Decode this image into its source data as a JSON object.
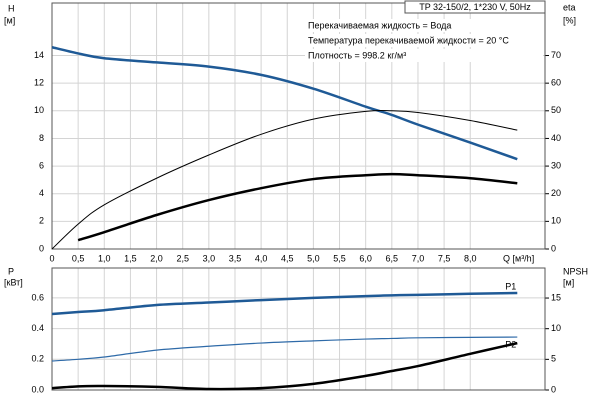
{
  "chart_data": [
    {
      "type": "line",
      "title": "TP 32-150/2, 1*230 V, 50Hz",
      "annotations": [
        "Перекачиваемая жидкость = Вода",
        "Температура перекачиваемой жидкости = 20 °C",
        "Плотность = 998.2 кг/м³"
      ],
      "ylabel": "H",
      "yunit": "[м]",
      "y2label": "eta",
      "y2unit": "[%]",
      "xlabel": "Q [м³/h]",
      "x": [
        0,
        0.5,
        1,
        2,
        3,
        4,
        5,
        6,
        6.5,
        7,
        8,
        8.9
      ],
      "xlim": [
        0,
        9.43
      ],
      "xticks": [
        0,
        {
          "value": 0.5,
          "label": "0,5"
        },
        {
          "value": 1,
          "label": "1,0"
        },
        {
          "value": 1.5,
          "label": "1,5"
        },
        {
          "value": 2,
          "label": "2,0"
        },
        {
          "value": 2.5,
          "label": "2,5"
        },
        {
          "value": 3,
          "label": "3,0"
        },
        {
          "value": 3.5,
          "label": "3,5"
        },
        {
          "value": 4,
          "label": "4,0"
        },
        {
          "value": 4.5,
          "label": "4,5"
        },
        {
          "value": 5,
          "label": "5,0"
        },
        {
          "value": 5.5,
          "label": "5,5"
        },
        {
          "value": 6,
          "label": "6,0"
        },
        {
          "value": 6.5,
          "label": "6,5"
        },
        {
          "value": 7,
          "label": "7,0"
        },
        {
          "value": 7.5,
          "label": "7,5"
        },
        {
          "value": 8,
          "label": "8,0"
        }
      ],
      "ylim": [
        0,
        17.8
      ],
      "yticks": [
        0,
        2,
        4,
        6,
        8,
        10,
        12,
        14
      ],
      "y2lim": [
        0,
        89
      ],
      "y2ticks": [
        0,
        10,
        20,
        30,
        40,
        50,
        60,
        70
      ],
      "grid": true,
      "series": [
        {
          "color": "#1f5a96",
          "line_width": 2.5,
          "values": [
            14.6,
            14.15,
            13.8,
            13.5,
            13.2,
            12.6,
            11.6,
            10.3,
            9.7,
            9.0,
            7.7,
            6.5
          ]
        },
        {
          "color": "#000000",
          "line_width": 1,
          "axis": "y2",
          "values": [
            0,
            9,
            16,
            25.6,
            34,
            41.5,
            47,
            49.8,
            50,
            49.4,
            46.5,
            43
          ]
        },
        {
          "color": "#000000",
          "line_width": 2.5,
          "axis": "y2",
          "values": [
            null,
            3.2,
            6.1,
            12.3,
            17.7,
            22,
            25.3,
            26.7,
            27.1,
            26.7,
            25.6,
            23.8
          ]
        }
      ]
    },
    {
      "type": "line",
      "ylabel": "P",
      "yunit": "[кВт]",
      "y2label": "NPSH",
      "y2unit": "[м]",
      "x": [
        0,
        0.5,
        1,
        2,
        3,
        4,
        5,
        6,
        6.5,
        7,
        8,
        8.9
      ],
      "xlim": [
        0,
        9.43
      ],
      "xticks": [
        0,
        0.5,
        1,
        1.5,
        2,
        2.5,
        3,
        3.5,
        4,
        4.5,
        5,
        5.5,
        6,
        6.5,
        7,
        7.5,
        8
      ],
      "ylim": [
        0,
        0.795
      ],
      "yticks": [
        {
          "value": 0,
          "label": "0.0"
        },
        0.2,
        0.4,
        0.6
      ],
      "y2lim": [
        0,
        19.9
      ],
      "y2ticks": [
        0,
        5,
        10,
        15
      ],
      "grid": true,
      "series": [
        {
          "name": "P1",
          "color": "#1f5a96",
          "line_width": 2.5,
          "values": [
            0.495,
            0.508,
            0.52,
            0.554,
            0.57,
            0.586,
            0.6,
            0.612,
            0.617,
            0.62,
            0.627,
            0.632
          ]
        },
        {
          "name": "P2",
          "color": "#2e6aa8",
          "line_width": 1.2,
          "values": [
            0.189,
            0.2,
            0.215,
            0.26,
            0.285,
            0.306,
            0.32,
            0.332,
            0.336,
            0.34,
            0.343,
            0.345
          ]
        },
        {
          "color": "#000000",
          "line_width": 2.5,
          "axis": "y2",
          "values": [
            0.3,
            0.6,
            0.65,
            0.5,
            0.16,
            0.3,
            1.0,
            2.3,
            3.1,
            3.9,
            5.9,
            7.65
          ]
        }
      ]
    }
  ]
}
